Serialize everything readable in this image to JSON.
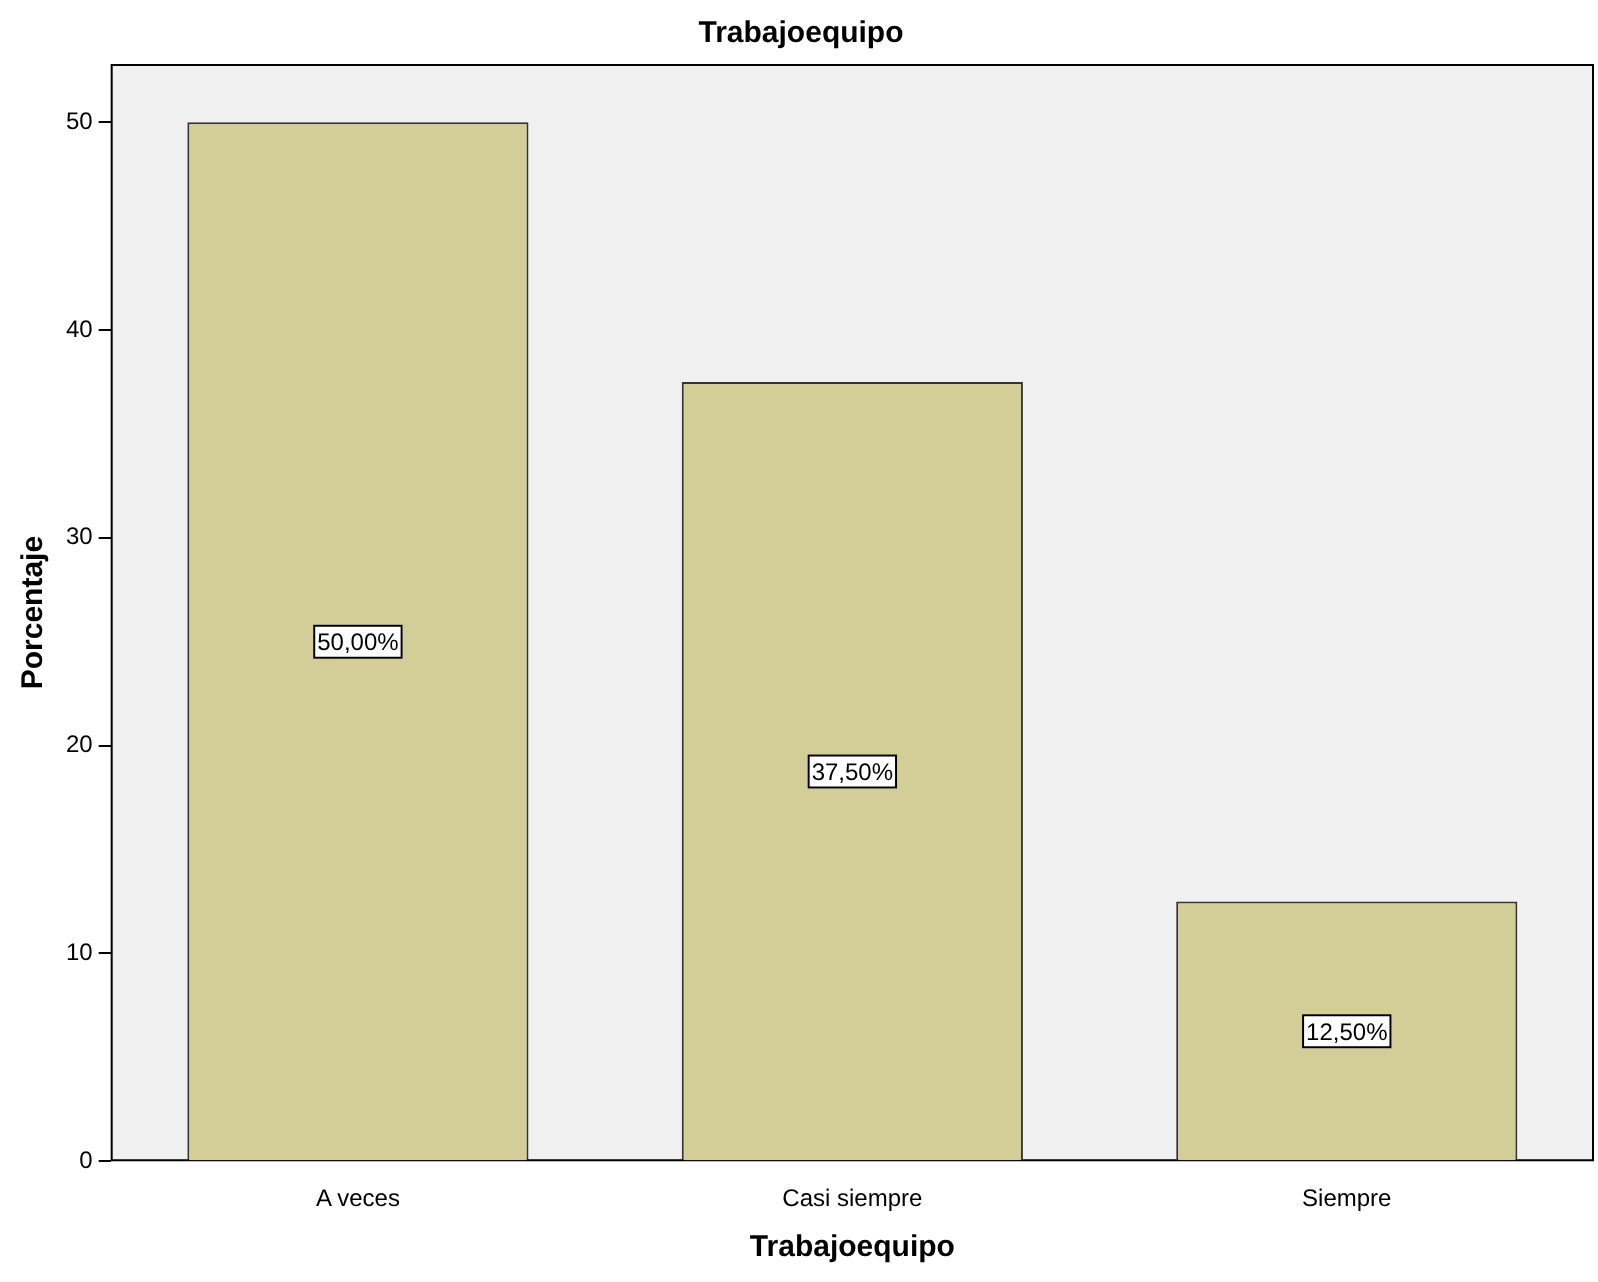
{
  "chart_data": {
    "type": "bar",
    "title": "Trabajoequipo",
    "xlabel": "Trabajoequipo",
    "ylabel": "Porcentaje",
    "categories": [
      "A veces",
      "Casi siempre",
      "Siempre"
    ],
    "values": [
      50,
      37.5,
      12.5
    ],
    "color": "#d3ce97",
    "value_labels": [
      "50,00%",
      "37,50%",
      "12,50%"
    ],
    "ylim": [
      0,
      52.8
    ],
    "yticks": [
      0,
      10,
      20,
      30,
      40,
      50
    ]
  }
}
